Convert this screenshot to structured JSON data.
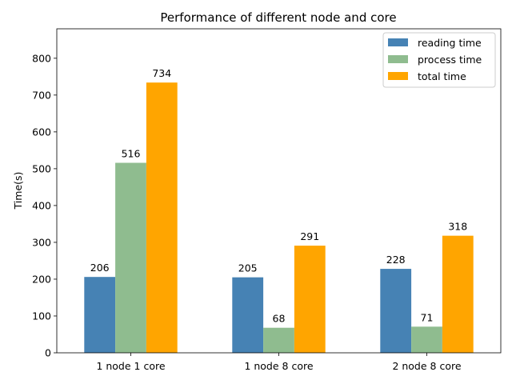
{
  "chart_data": {
    "type": "bar",
    "title": "Performance of different node and core",
    "xlabel": "",
    "ylabel": "Time(s)",
    "categories": [
      "1 node 1 core",
      "1 node 8 core",
      "2 node 8 core"
    ],
    "series": [
      {
        "name": "reading time",
        "values": [
          206,
          205,
          228
        ],
        "color": "#4682b4"
      },
      {
        "name": "process time",
        "values": [
          516,
          68,
          71
        ],
        "color": "#8fbc8f"
      },
      {
        "name": "total time",
        "values": [
          734,
          291,
          318
        ],
        "color": "#ffa500"
      }
    ],
    "ylim": [
      0,
      880
    ],
    "yticks": [
      0,
      100,
      200,
      300,
      400,
      500,
      600,
      700,
      800
    ],
    "legend_position": "top-right",
    "grid": false
  }
}
